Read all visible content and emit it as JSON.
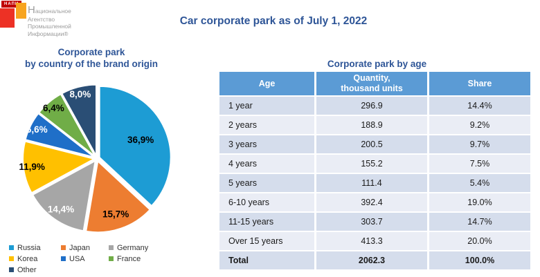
{
  "logo": {
    "tag": "НАПИ",
    "name_lines": [
      "Национальное",
      "Агентство",
      "Промышленной",
      "Информации®"
    ]
  },
  "header": {
    "title": "Car corporate park as of July 1, 2022"
  },
  "pie_section": {
    "title_line1": "Corporate park",
    "title_line2": "by country of the brand origin"
  },
  "chart_data": [
    {
      "type": "pie",
      "title": "Corporate park by country of the brand origin",
      "legend_position": "bottom",
      "series": [
        {
          "label": "Russia",
          "value": 36.9,
          "display": "36,9%",
          "color": "#1D9CD4",
          "label_color": "#000000"
        },
        {
          "label": "Japan",
          "value": 15.7,
          "display": "15,7%",
          "color": "#ED7D31",
          "label_color": "#000000"
        },
        {
          "label": "Germany",
          "value": 14.4,
          "display": "14,4%",
          "color": "#A6A6A6",
          "label_color": "#FFFFFF"
        },
        {
          "label": "Korea",
          "value": 11.9,
          "display": "11,9%",
          "color": "#FFC000",
          "label_color": "#000000"
        },
        {
          "label": "USA",
          "value": 6.6,
          "display": "6,6%",
          "color": "#1F6FC8",
          "label_color": "#FFFFFF"
        },
        {
          "label": "France",
          "value": 6.4,
          "display": "6,4%",
          "color": "#70AD47",
          "label_color": "#000000"
        },
        {
          "label": "Other",
          "value": 8.0,
          "display": "8,0%",
          "color": "#2A4E75",
          "label_color": "#FFFFFF"
        }
      ]
    },
    {
      "type": "table",
      "title": "Corporate park by age",
      "columns": [
        "Age",
        "Quantity,\nthousand units",
        "Share"
      ],
      "rows": [
        {
          "age": "1 year",
          "quantity": "296.9",
          "share": "14.4%"
        },
        {
          "age": "2 years",
          "quantity": "188.9",
          "share": "9.2%"
        },
        {
          "age": "3 years",
          "quantity": "200.5",
          "share": "9.7%"
        },
        {
          "age": "4 years",
          "quantity": "155.2",
          "share": "7.5%"
        },
        {
          "age": "5 years",
          "quantity": "111.4",
          "share": "5.4%"
        },
        {
          "age": "6-10 years",
          "quantity": "392.4",
          "share": "19.0%"
        },
        {
          "age": "11-15 years",
          "quantity": "303.7",
          "share": "14.7%"
        },
        {
          "age": "Over 15 years",
          "quantity": "413.3",
          "share": "20.0%"
        },
        {
          "age": "Total",
          "quantity": "2062.3",
          "share": "100.0%"
        }
      ]
    }
  ],
  "colors": {
    "title": "#2E5597",
    "table_header_bg": "#5B9BD5",
    "table_header_text": "#FFFFFF",
    "row_band_dark": "#D5DDEC",
    "row_band_light": "#EAEDF5",
    "logo_red": "#ED3125",
    "logo_orange": "#F7A41F",
    "logo_tag_bg": "#C00000",
    "logo_text": "#9C9C9C"
  }
}
